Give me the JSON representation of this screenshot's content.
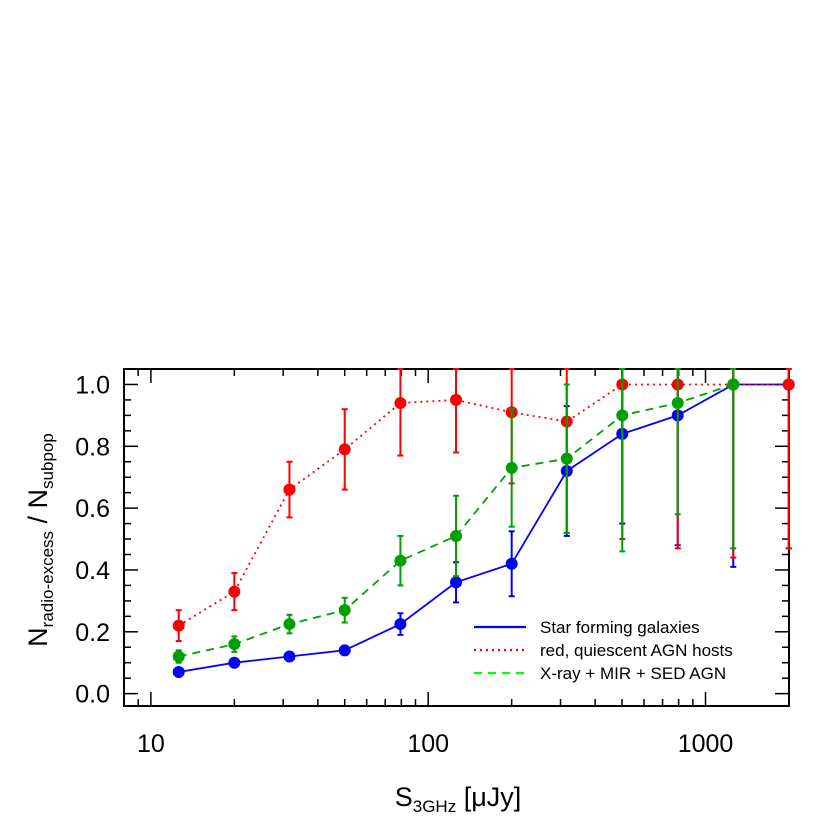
{
  "chart_data": {
    "type": "line",
    "xscale": "log",
    "xlim": [
      8,
      2000
    ],
    "ylim": [
      -0.04,
      1.05
    ],
    "xlabel": {
      "main": "S",
      "sub": "3GHz",
      "unit": "[μJy]"
    },
    "ylabel": {
      "main1": "N",
      "sub1": "radio-excess",
      "sep": " / ",
      "main2": "N",
      "sub2": "subpop"
    },
    "xticks": [
      {
        "value": 10,
        "label": "10"
      },
      {
        "value": 100,
        "label": "100"
      },
      {
        "value": 1000,
        "label": "1000"
      }
    ],
    "yticks": [
      {
        "value": 0.0,
        "label": "0.0"
      },
      {
        "value": 0.2,
        "label": "0.2"
      },
      {
        "value": 0.4,
        "label": "0.4"
      },
      {
        "value": 0.6,
        "label": "0.6"
      },
      {
        "value": 0.8,
        "label": "0.8"
      },
      {
        "value": 1.0,
        "label": "1.0"
      }
    ],
    "legend_position": "bottom-right",
    "series": [
      {
        "name": "Star forming galaxies",
        "color": "#0000ff",
        "linestyle": "solid",
        "points": [
          {
            "x": 12.6,
            "y": 0.07,
            "lo": 0.064,
            "hi": 0.076
          },
          {
            "x": 20,
            "y": 0.1,
            "lo": 0.094,
            "hi": 0.106
          },
          {
            "x": 31.6,
            "y": 0.12,
            "lo": 0.114,
            "hi": 0.126
          },
          {
            "x": 50,
            "y": 0.14,
            "lo": 0.125,
            "hi": 0.155
          },
          {
            "x": 79.4,
            "y": 0.225,
            "lo": 0.19,
            "hi": 0.26
          },
          {
            "x": 126,
            "y": 0.36,
            "lo": 0.295,
            "hi": 0.425
          },
          {
            "x": 200,
            "y": 0.42,
            "lo": 0.315,
            "hi": 0.525
          },
          {
            "x": 316,
            "y": 0.72,
            "lo": 0.51,
            "hi": 0.93
          },
          {
            "x": 501,
            "y": 0.84,
            "lo": 0.55,
            "hi": 1.05
          },
          {
            "x": 794,
            "y": 0.9,
            "lo": 0.48,
            "hi": 1.05
          },
          {
            "x": 1259,
            "y": 1.0,
            "lo": 0.41,
            "hi": 1.05
          },
          {
            "x": 1995,
            "y": 1.0,
            "lo": 0.47,
            "hi": 1.05
          }
        ]
      },
      {
        "name": "red, quiescent AGN hosts",
        "color": "#ff0000",
        "linestyle": "dotted",
        "points": [
          {
            "x": 12.6,
            "y": 0.22,
            "lo": 0.17,
            "hi": 0.27
          },
          {
            "x": 20,
            "y": 0.33,
            "lo": 0.27,
            "hi": 0.39
          },
          {
            "x": 31.6,
            "y": 0.66,
            "lo": 0.57,
            "hi": 0.75
          },
          {
            "x": 50,
            "y": 0.79,
            "lo": 0.66,
            "hi": 0.92
          },
          {
            "x": 79.4,
            "y": 0.94,
            "lo": 0.77,
            "hi": 1.05
          },
          {
            "x": 126,
            "y": 0.95,
            "lo": 0.78,
            "hi": 1.05
          },
          {
            "x": 200,
            "y": 0.91,
            "lo": 0.68,
            "hi": 1.05
          },
          {
            "x": 316,
            "y": 0.88,
            "lo": 0.52,
            "hi": 1.05
          },
          {
            "x": 501,
            "y": 1.0,
            "lo": 0.5,
            "hi": 1.05
          },
          {
            "x": 794,
            "y": 1.0,
            "lo": 0.47,
            "hi": 1.05
          },
          {
            "x": 1259,
            "y": 1.0,
            "lo": 0.44,
            "hi": 1.05
          },
          {
            "x": 1995,
            "y": 1.0,
            "lo": 0.47,
            "hi": 1.05
          }
        ]
      },
      {
        "name": "X-ray + MIR + SED AGN",
        "color": "#00a000",
        "legend_color": "#00ff00",
        "linestyle": "dashed",
        "points": [
          {
            "x": 12.6,
            "y": 0.12,
            "lo": 0.1,
            "hi": 0.14
          },
          {
            "x": 20,
            "y": 0.16,
            "lo": 0.135,
            "hi": 0.185
          },
          {
            "x": 31.6,
            "y": 0.225,
            "lo": 0.195,
            "hi": 0.255
          },
          {
            "x": 50,
            "y": 0.27,
            "lo": 0.23,
            "hi": 0.31
          },
          {
            "x": 79.4,
            "y": 0.43,
            "lo": 0.35,
            "hi": 0.51
          },
          {
            "x": 126,
            "y": 0.51,
            "lo": 0.38,
            "hi": 0.64
          },
          {
            "x": 200,
            "y": 0.73,
            "lo": 0.54,
            "hi": 0.92
          },
          {
            "x": 316,
            "y": 0.76,
            "lo": 0.52,
            "hi": 1.0
          },
          {
            "x": 501,
            "y": 0.9,
            "lo": 0.46,
            "hi": 1.05
          },
          {
            "x": 794,
            "y": 0.94,
            "lo": 0.58,
            "hi": 1.05
          },
          {
            "x": 1259,
            "y": 1.0,
            "lo": 0.47,
            "hi": 1.05
          }
        ]
      }
    ]
  }
}
